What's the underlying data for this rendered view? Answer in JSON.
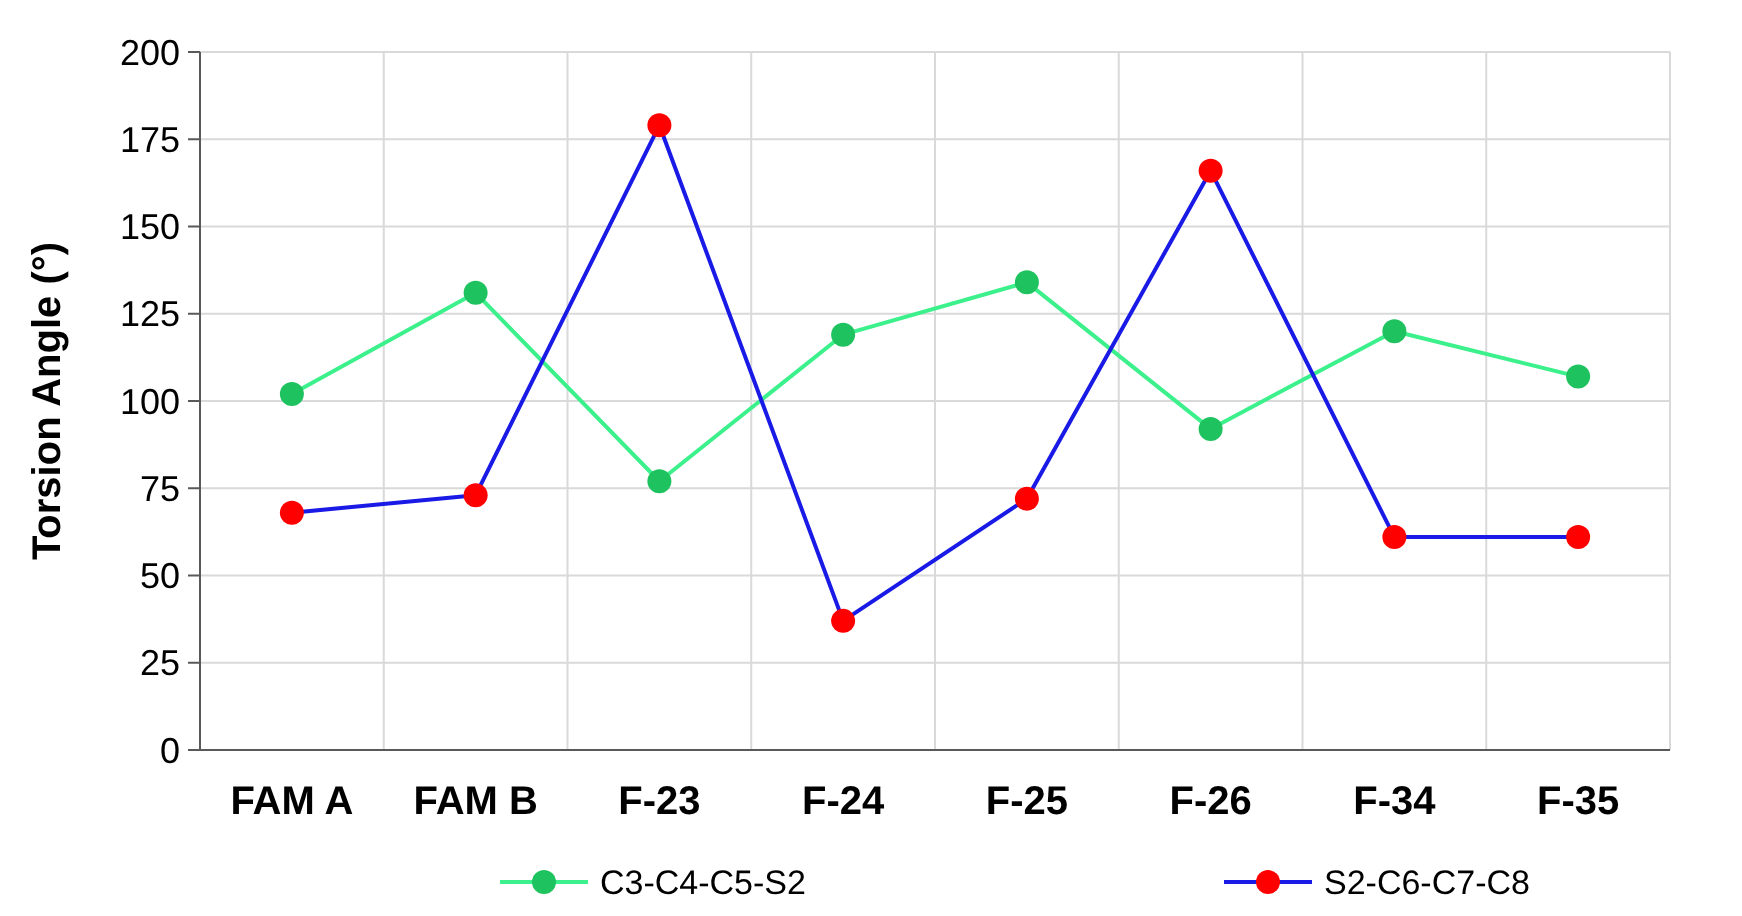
{
  "chart_data": {
    "type": "line",
    "ylabel": "Torsion Angle (°)",
    "categories": [
      "FAM A",
      "FAM B",
      "F-23",
      "F-24",
      "F-25",
      "F-26",
      "F-34",
      "F-35"
    ],
    "series": [
      {
        "name": "C3-C4-C5-S2",
        "color": "#3cf08c",
        "colors": [
          "#1ec25e",
          "#1ec25e",
          "#1ec25e",
          "#1ec25e",
          "#1ec25e",
          "#1ec25e",
          "#1ec25e",
          "#1ec25e"
        ],
        "values": [
          102,
          131,
          77,
          119,
          134,
          92,
          120,
          107
        ]
      },
      {
        "name": "S2-C6-C7-C8",
        "color": "#1a1ae6",
        "colors": [
          "#ff0000",
          "#ff0000",
          "#ff0000",
          "#ff0000",
          "#ff0000",
          "#ff0000",
          "#ff0000",
          "#ff0000"
        ],
        "values": [
          68,
          73,
          179,
          37,
          72,
          166,
          61,
          61
        ]
      }
    ],
    "ylim": [
      0,
      200
    ],
    "yticks": [
      0,
      25,
      50,
      75,
      100,
      125,
      150,
      175,
      200
    ],
    "grid": true,
    "legend": "bottom",
    "marker": "circle",
    "line_style": "solid"
  }
}
